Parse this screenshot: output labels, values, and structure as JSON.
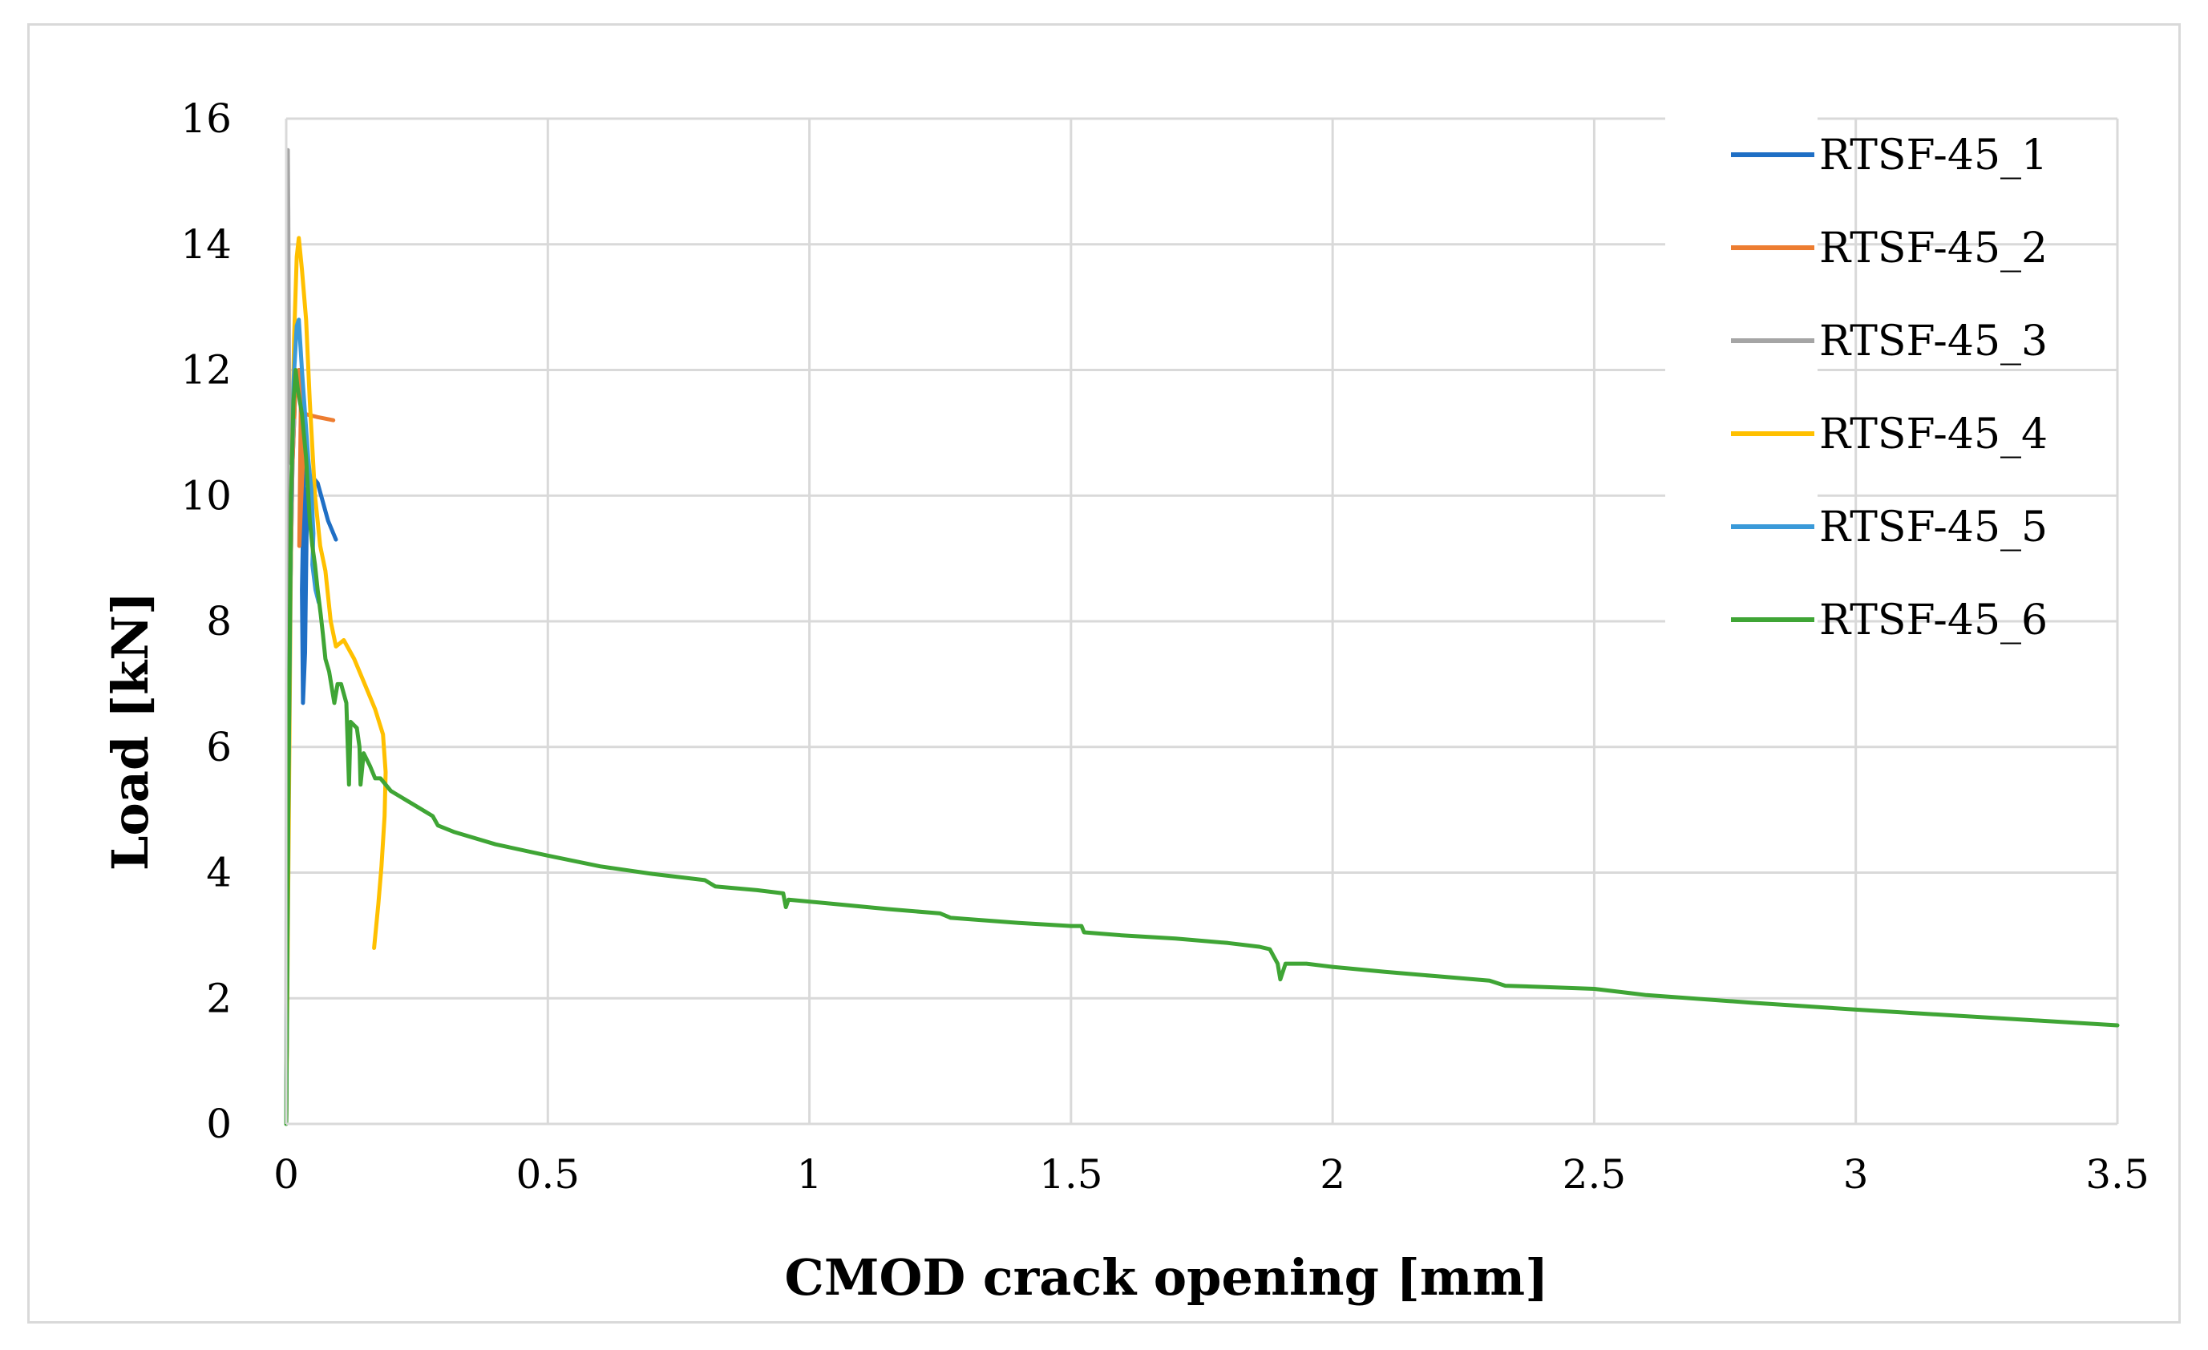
{
  "chart_data": {
    "type": "line",
    "title": "",
    "xlabel": "CMOD crack opening [mm]",
    "ylabel": "Load [kN]",
    "xlim": [
      0,
      3.5
    ],
    "ylim": [
      0,
      16
    ],
    "xticks": [
      0,
      0.5,
      1,
      1.5,
      2,
      2.5,
      3,
      3.5
    ],
    "xtick_labels": [
      "0",
      "0.5",
      "1",
      "1.5",
      "2",
      "2.5",
      "3",
      "3.5"
    ],
    "yticks": [
      0,
      2,
      4,
      6,
      8,
      10,
      12,
      14,
      16
    ],
    "ytick_labels": [
      "0",
      "2",
      "4",
      "6",
      "8",
      "10",
      "12",
      "14",
      "16"
    ],
    "grid": true,
    "legend_position": "right",
    "series": [
      {
        "name": "RTSF-45_1",
        "color": "#1f6fc5",
        "points": [
          [
            0,
            0
          ],
          [
            0.003,
            4
          ],
          [
            0.007,
            8
          ],
          [
            0.012,
            10.5
          ],
          [
            0.018,
            11.8
          ],
          [
            0.025,
            12.0
          ],
          [
            0.03,
            11.5
          ],
          [
            0.035,
            10.8
          ],
          [
            0.03,
            8.5
          ],
          [
            0.032,
            6.7
          ],
          [
            0.036,
            7.5
          ],
          [
            0.04,
            10.1
          ],
          [
            0.05,
            10.3
          ],
          [
            0.06,
            10.2
          ],
          [
            0.07,
            9.9
          ],
          [
            0.08,
            9.6
          ],
          [
            0.095,
            9.3
          ]
        ]
      },
      {
        "name": "RTSF-45_2",
        "color": "#ed7d31",
        "points": [
          [
            0,
            0
          ],
          [
            0.003,
            4
          ],
          [
            0.007,
            8
          ],
          [
            0.012,
            10.5
          ],
          [
            0.018,
            11.8
          ],
          [
            0.024,
            12.0
          ],
          [
            0.028,
            11.6
          ],
          [
            0.025,
            9.2
          ],
          [
            0.03,
            10.2
          ],
          [
            0.036,
            11.3
          ],
          [
            0.06,
            11.25
          ],
          [
            0.09,
            11.2
          ]
        ]
      },
      {
        "name": "RTSF-45_3",
        "color": "#a5a5a5",
        "points": [
          [
            0,
            0
          ],
          [
            0.001,
            5
          ],
          [
            0.002,
            10
          ],
          [
            0.003,
            15.5
          ],
          [
            0.004,
            14.5
          ],
          [
            0.006,
            10.8
          ],
          [
            0.01,
            10.5
          ],
          [
            0.015,
            11.2
          ]
        ]
      },
      {
        "name": "RTSF-45_4",
        "color": "#ffc000",
        "points": [
          [
            0,
            0
          ],
          [
            0.005,
            5
          ],
          [
            0.01,
            10
          ],
          [
            0.015,
            12.5
          ],
          [
            0.02,
            13.8
          ],
          [
            0.024,
            14.1
          ],
          [
            0.03,
            13.6
          ],
          [
            0.038,
            12.8
          ],
          [
            0.045,
            11.5
          ],
          [
            0.055,
            10.0
          ],
          [
            0.065,
            9.2
          ],
          [
            0.075,
            8.8
          ],
          [
            0.085,
            8.0
          ],
          [
            0.095,
            7.6
          ],
          [
            0.11,
            7.7
          ],
          [
            0.13,
            7.4
          ],
          [
            0.15,
            7.0
          ],
          [
            0.17,
            6.6
          ],
          [
            0.185,
            6.2
          ],
          [
            0.19,
            5.6
          ],
          [
            0.188,
            4.9
          ],
          [
            0.182,
            4.1
          ],
          [
            0.176,
            3.5
          ],
          [
            0.168,
            2.8
          ]
        ]
      },
      {
        "name": "RTSF-45_5",
        "color": "#3a9ad9",
        "points": [
          [
            0,
            0
          ],
          [
            0.004,
            5
          ],
          [
            0.009,
            9.5
          ],
          [
            0.014,
            11.8
          ],
          [
            0.02,
            12.7
          ],
          [
            0.024,
            12.8
          ],
          [
            0.03,
            12.0
          ],
          [
            0.036,
            11.3
          ],
          [
            0.042,
            10.6
          ],
          [
            0.048,
            10.1
          ],
          [
            0.052,
            9.4
          ],
          [
            0.05,
            8.9
          ],
          [
            0.056,
            8.5
          ],
          [
            0.062,
            8.3
          ]
        ]
      },
      {
        "name": "RTSF-45_6",
        "color": "#3fa535",
        "points": [
          [
            0,
            0
          ],
          [
            0.004,
            5
          ],
          [
            0.009,
            10
          ],
          [
            0.014,
            11.5
          ],
          [
            0.018,
            12.0
          ],
          [
            0.022,
            11.7
          ],
          [
            0.03,
            11.3
          ],
          [
            0.038,
            10.6
          ],
          [
            0.045,
            9.6
          ],
          [
            0.05,
            9.2
          ],
          [
            0.055,
            8.9
          ],
          [
            0.06,
            8.5
          ],
          [
            0.066,
            8.1
          ],
          [
            0.07,
            7.8
          ],
          [
            0.075,
            7.4
          ],
          [
            0.082,
            7.2
          ],
          [
            0.088,
            6.9
          ],
          [
            0.092,
            6.7
          ],
          [
            0.098,
            7.0
          ],
          [
            0.105,
            7.0
          ],
          [
            0.115,
            6.7
          ],
          [
            0.12,
            5.4
          ],
          [
            0.123,
            6.4
          ],
          [
            0.135,
            6.3
          ],
          [
            0.14,
            6.0
          ],
          [
            0.142,
            5.4
          ],
          [
            0.148,
            5.9
          ],
          [
            0.16,
            5.7
          ],
          [
            0.17,
            5.5
          ],
          [
            0.18,
            5.5
          ],
          [
            0.2,
            5.3
          ],
          [
            0.22,
            5.2
          ],
          [
            0.25,
            5.05
          ],
          [
            0.28,
            4.9
          ],
          [
            0.29,
            4.75
          ],
          [
            0.32,
            4.65
          ],
          [
            0.4,
            4.45
          ],
          [
            0.5,
            4.27
          ],
          [
            0.6,
            4.1
          ],
          [
            0.7,
            3.98
          ],
          [
            0.8,
            3.88
          ],
          [
            0.82,
            3.78
          ],
          [
            0.9,
            3.72
          ],
          [
            0.95,
            3.67
          ],
          [
            0.955,
            3.45
          ],
          [
            0.96,
            3.57
          ],
          [
            1.05,
            3.5
          ],
          [
            1.15,
            3.42
          ],
          [
            1.25,
            3.35
          ],
          [
            1.27,
            3.28
          ],
          [
            1.4,
            3.2
          ],
          [
            1.5,
            3.15
          ],
          [
            1.52,
            3.15
          ],
          [
            1.525,
            3.05
          ],
          [
            1.6,
            3.0
          ],
          [
            1.7,
            2.95
          ],
          [
            1.8,
            2.88
          ],
          [
            1.86,
            2.82
          ],
          [
            1.88,
            2.78
          ],
          [
            1.895,
            2.55
          ],
          [
            1.9,
            2.3
          ],
          [
            1.91,
            2.55
          ],
          [
            1.95,
            2.55
          ],
          [
            2.0,
            2.5
          ],
          [
            2.1,
            2.42
          ],
          [
            2.2,
            2.35
          ],
          [
            2.3,
            2.28
          ],
          [
            2.33,
            2.2
          ],
          [
            2.4,
            2.18
          ],
          [
            2.5,
            2.15
          ],
          [
            2.55,
            2.1
          ],
          [
            2.6,
            2.05
          ],
          [
            2.8,
            1.93
          ],
          [
            3.0,
            1.82
          ],
          [
            3.2,
            1.72
          ],
          [
            3.5,
            1.57
          ]
        ]
      }
    ]
  }
}
